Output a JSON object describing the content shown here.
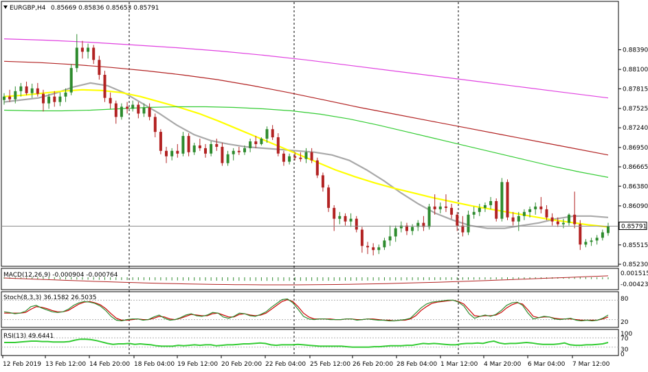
{
  "window": {
    "symbol_title": "EURGBP,H4",
    "ohlc_text": "0.85669 0.85836 0.85653 0.85791"
  },
  "colors": {
    "bull_candle": "#2e8b2e",
    "bear_candle": "#b22222",
    "ma_gray": "#a9a9a9",
    "ma_yellow": "#ffff00",
    "ma_green": "#33cc33",
    "ma_red": "#b22222",
    "ma_magenta": "#e040e0",
    "macd_signal": "#b22222",
    "macd_hist": "#2e8b2e",
    "stoch_main": "#2e8b2e",
    "stoch_signal": "#cc0000",
    "rsi": "#33cc33"
  },
  "chart_data": [
    {
      "type": "candlestick",
      "name": "price",
      "title": "EURGBP,H4",
      "ylim": [
        0.8523,
        0.889
      ],
      "y_ticks": [
        "0.88390",
        "0.88100",
        "0.87815",
        "0.87525",
        "0.87240",
        "0.86950",
        "0.86665",
        "0.86380",
        "0.86090",
        "0.85791",
        "0.85515",
        "0.85230"
      ],
      "current_price": "0.85791",
      "candles": [
        [
          0.8765,
          0.8775,
          0.8758,
          0.877
        ],
        [
          0.877,
          0.878,
          0.8762,
          0.8766
        ],
        [
          0.8766,
          0.8785,
          0.876,
          0.8778
        ],
        [
          0.8778,
          0.879,
          0.877,
          0.8785
        ],
        [
          0.8785,
          0.8792,
          0.8772,
          0.8775
        ],
        [
          0.8775,
          0.8789,
          0.8768,
          0.8782
        ],
        [
          0.8782,
          0.879,
          0.877,
          0.8774
        ],
        [
          0.8774,
          0.878,
          0.8748,
          0.876
        ],
        [
          0.876,
          0.8774,
          0.8752,
          0.877
        ],
        [
          0.877,
          0.8778,
          0.8755,
          0.8762
        ],
        [
          0.8762,
          0.8776,
          0.8756,
          0.877
        ],
        [
          0.877,
          0.8782,
          0.8762,
          0.8776
        ],
        [
          0.8776,
          0.8818,
          0.8772,
          0.8812
        ],
        [
          0.8812,
          0.8862,
          0.8806,
          0.8842
        ],
        [
          0.8842,
          0.8852,
          0.8826,
          0.8836
        ],
        [
          0.8836,
          0.8848,
          0.8826,
          0.8842
        ],
        [
          0.8842,
          0.8846,
          0.8818,
          0.8824
        ],
        [
          0.8824,
          0.883,
          0.8795,
          0.8802
        ],
        [
          0.8802,
          0.8808,
          0.8762,
          0.8768
        ],
        [
          0.8768,
          0.8776,
          0.8752,
          0.876
        ],
        [
          0.876,
          0.8764,
          0.873,
          0.874
        ],
        [
          0.874,
          0.876,
          0.8736,
          0.8755
        ],
        [
          0.8755,
          0.8762,
          0.8745,
          0.8752
        ],
        [
          0.8752,
          0.8764,
          0.8748,
          0.8758
        ],
        [
          0.8758,
          0.8762,
          0.8738,
          0.8745
        ],
        [
          0.8745,
          0.876,
          0.874,
          0.8754
        ],
        [
          0.8754,
          0.876,
          0.8735,
          0.874
        ],
        [
          0.874,
          0.8745,
          0.871,
          0.8718
        ],
        [
          0.8718,
          0.8722,
          0.8685,
          0.869
        ],
        [
          0.869,
          0.8696,
          0.8672,
          0.8682
        ],
        [
          0.8682,
          0.8694,
          0.8676,
          0.869
        ],
        [
          0.869,
          0.87,
          0.868,
          0.8686
        ],
        [
          0.8686,
          0.8718,
          0.8682,
          0.8712
        ],
        [
          0.8712,
          0.8716,
          0.8682,
          0.8688
        ],
        [
          0.8688,
          0.8702,
          0.8684,
          0.8698
        ],
        [
          0.8698,
          0.8708,
          0.869,
          0.8694
        ],
        [
          0.8694,
          0.87,
          0.868,
          0.8686
        ],
        [
          0.8686,
          0.8704,
          0.8682,
          0.87
        ],
        [
          0.87,
          0.8708,
          0.869,
          0.8696
        ],
        [
          0.8696,
          0.8702,
          0.8668,
          0.8672
        ],
        [
          0.8672,
          0.869,
          0.8668,
          0.8685
        ],
        [
          0.8685,
          0.8694,
          0.8676,
          0.869
        ],
        [
          0.869,
          0.8696,
          0.8684,
          0.8688
        ],
        [
          0.8688,
          0.8698,
          0.8684,
          0.8694
        ],
        [
          0.8694,
          0.8708,
          0.8688,
          0.8704
        ],
        [
          0.8704,
          0.8712,
          0.8694,
          0.87
        ],
        [
          0.87,
          0.871,
          0.8698,
          0.8708
        ],
        [
          0.8708,
          0.8726,
          0.8702,
          0.8722
        ],
        [
          0.8722,
          0.8728,
          0.8706,
          0.871
        ],
        [
          0.871,
          0.8716,
          0.8682,
          0.8686
        ],
        [
          0.8686,
          0.869,
          0.8668,
          0.8674
        ],
        [
          0.8674,
          0.8686,
          0.867,
          0.8682
        ],
        [
          0.8682,
          0.8688,
          0.8676,
          0.868
        ],
        [
          0.868,
          0.8688,
          0.8674,
          0.8678
        ],
        [
          0.8678,
          0.8694,
          0.8672,
          0.8688
        ],
        [
          0.8688,
          0.8694,
          0.8672,
          0.8676
        ],
        [
          0.8676,
          0.868,
          0.865,
          0.8654
        ],
        [
          0.8654,
          0.8658,
          0.863,
          0.8636
        ],
        [
          0.8636,
          0.864,
          0.86,
          0.8606
        ],
        [
          0.8606,
          0.861,
          0.8572,
          0.859
        ],
        [
          0.859,
          0.86,
          0.8582,
          0.8594
        ],
        [
          0.8594,
          0.8598,
          0.858,
          0.8586
        ],
        [
          0.8586,
          0.8598,
          0.8578,
          0.859
        ],
        [
          0.859,
          0.8594,
          0.857,
          0.8574
        ],
        [
          0.8574,
          0.8578,
          0.854,
          0.855
        ],
        [
          0.855,
          0.8556,
          0.8538,
          0.8548
        ],
        [
          0.8548,
          0.8554,
          0.8536,
          0.8544
        ],
        [
          0.8544,
          0.8552,
          0.8538,
          0.8548
        ],
        [
          0.8548,
          0.8562,
          0.8544,
          0.8558
        ],
        [
          0.8558,
          0.858,
          0.855,
          0.8564
        ],
        [
          0.8564,
          0.858,
          0.8556,
          0.8576
        ],
        [
          0.8576,
          0.8586,
          0.857,
          0.858
        ],
        [
          0.858,
          0.8584,
          0.8566,
          0.8572
        ],
        [
          0.8572,
          0.8582,
          0.8566,
          0.8578
        ],
        [
          0.8578,
          0.8588,
          0.8572,
          0.8584
        ],
        [
          0.8584,
          0.8594,
          0.8572,
          0.8578
        ],
        [
          0.8578,
          0.8612,
          0.8574,
          0.8608
        ],
        [
          0.8608,
          0.8626,
          0.8596,
          0.8604
        ],
        [
          0.8604,
          0.8614,
          0.8598,
          0.8608
        ],
        [
          0.8608,
          0.8626,
          0.86,
          0.8606
        ],
        [
          0.8606,
          0.8612,
          0.859,
          0.8596
        ],
        [
          0.8596,
          0.86,
          0.8572,
          0.858
        ],
        [
          0.858,
          0.8594,
          0.8564,
          0.857
        ],
        [
          0.857,
          0.8602,
          0.8566,
          0.8596
        ],
        [
          0.8596,
          0.8608,
          0.859,
          0.86
        ],
        [
          0.86,
          0.8612,
          0.8594,
          0.8606
        ],
        [
          0.8606,
          0.8614,
          0.86,
          0.861
        ],
        [
          0.861,
          0.8622,
          0.8604,
          0.8616
        ],
        [
          0.8616,
          0.862,
          0.8586,
          0.859
        ],
        [
          0.859,
          0.865,
          0.8586,
          0.8644
        ],
        [
          0.8644,
          0.8648,
          0.8588,
          0.8592
        ],
        [
          0.8592,
          0.86,
          0.858,
          0.8586
        ],
        [
          0.8586,
          0.86,
          0.8572,
          0.8594
        ],
        [
          0.8594,
          0.8604,
          0.8588,
          0.86
        ],
        [
          0.86,
          0.8608,
          0.8592,
          0.8604
        ],
        [
          0.8604,
          0.8614,
          0.8596,
          0.8608
        ],
        [
          0.8608,
          0.8622,
          0.8598,
          0.8604
        ],
        [
          0.8604,
          0.861,
          0.8588,
          0.8592
        ],
        [
          0.8592,
          0.8598,
          0.858,
          0.8586
        ],
        [
          0.8586,
          0.8592,
          0.8578,
          0.8582
        ],
        [
          0.8582,
          0.859,
          0.8576,
          0.8584
        ],
        [
          0.8584,
          0.8598,
          0.858,
          0.8596
        ],
        [
          0.8596,
          0.863,
          0.8576,
          0.8582
        ],
        [
          0.8582,
          0.8588,
          0.8544,
          0.8552
        ],
        [
          0.8552,
          0.856,
          0.8548,
          0.8556
        ],
        [
          0.8556,
          0.8562,
          0.855,
          0.8558
        ],
        [
          0.8558,
          0.8566,
          0.8552,
          0.8562
        ],
        [
          0.8562,
          0.8574,
          0.8558,
          0.857
        ],
        [
          0.8569,
          0.8584,
          0.8565,
          0.8579
        ]
      ],
      "moving_averages": [
        {
          "color_key": "ma_gray",
          "values": [
            0.8762,
            0.8765,
            0.8768,
            0.8775,
            0.8784,
            0.879,
            0.8786,
            0.8775,
            0.876,
            0.8745,
            0.8728,
            0.8714,
            0.8705,
            0.87,
            0.8696,
            0.8694,
            0.8692,
            0.869,
            0.8688,
            0.8684,
            0.8676,
            0.8662,
            0.8646,
            0.8628,
            0.8612,
            0.8598,
            0.8588,
            0.858,
            0.8576,
            0.8576,
            0.858,
            0.8584,
            0.859,
            0.8594,
            0.8594,
            0.8592
          ]
        },
        {
          "color_key": "ma_yellow",
          "values": [
            0.877,
            0.8772,
            0.8775,
            0.8778,
            0.878,
            0.8779,
            0.8776,
            0.877,
            0.8762,
            0.8754,
            0.8745,
            0.8734,
            0.8722,
            0.871,
            0.8698,
            0.8686,
            0.8674,
            0.8662,
            0.8652,
            0.8643,
            0.8635,
            0.8628,
            0.8621,
            0.8615,
            0.8609,
            0.8604,
            0.8599,
            0.8594,
            0.8589,
            0.8585,
            0.8581,
            0.8578
          ]
        },
        {
          "color_key": "ma_green",
          "values": [
            0.875,
            0.8749,
            0.8749,
            0.875,
            0.8752,
            0.8754,
            0.8755,
            0.8755,
            0.8754,
            0.8752,
            0.8749,
            0.8744,
            0.8737,
            0.8728,
            0.8718,
            0.8708,
            0.8698,
            0.8688,
            0.8678,
            0.8668,
            0.8659,
            0.8651
          ]
        },
        {
          "color_key": "ma_red",
          "values": [
            0.8822,
            0.882,
            0.8817,
            0.8813,
            0.8808,
            0.8802,
            0.8795,
            0.8786,
            0.8776,
            0.8765,
            0.8754,
            0.8744,
            0.8734,
            0.8724,
            0.8714,
            0.8704,
            0.8694,
            0.8684
          ]
        },
        {
          "color_key": "ma_magenta",
          "values": [
            0.8855,
            0.8853,
            0.885,
            0.8846,
            0.8842,
            0.8837,
            0.8831,
            0.8824,
            0.8816,
            0.8808,
            0.88,
            0.8792,
            0.8784,
            0.8776,
            0.8768
          ]
        }
      ]
    },
    {
      "type": "bar+line",
      "name": "macd",
      "label": "MACD(12,26,9) -0.000904 -0.000764",
      "y_ticks": [
        "0.001515",
        "-0.004239"
      ]
    },
    {
      "type": "line",
      "name": "stochastic",
      "label": "Stoch(8,3,3) 36.1582 26.5035",
      "ylim": [
        0,
        100
      ],
      "y_ticks": [
        "80",
        "20"
      ],
      "main": [
        44,
        42,
        38,
        40,
        46,
        60,
        64,
        56,
        50,
        44,
        42,
        44,
        52,
        64,
        72,
        76,
        74,
        70,
        62,
        48,
        30,
        18,
        16,
        20,
        22,
        22,
        18,
        20,
        28,
        34,
        24,
        18,
        20,
        26,
        34,
        38,
        32,
        30,
        34,
        42,
        40,
        28,
        24,
        30,
        40,
        38,
        32,
        30,
        36,
        44,
        58,
        70,
        82,
        84,
        72,
        52,
        30,
        22,
        20,
        22,
        22,
        20,
        20,
        20,
        22,
        22,
        18,
        20,
        22,
        20,
        18,
        18,
        16,
        16,
        18,
        20,
        24,
        40,
        56,
        68,
        74,
        76,
        78,
        80,
        80,
        74,
        62,
        38,
        24,
        30,
        34,
        30,
        36,
        48,
        64,
        72,
        74,
        64,
        40,
        22,
        26,
        30,
        28,
        22,
        20,
        22,
        24,
        18,
        16,
        18,
        16,
        18,
        24,
        34
      ],
      "signal": [
        40,
        40,
        40,
        40,
        42,
        52,
        60,
        58,
        54,
        48,
        44,
        44,
        48,
        58,
        68,
        74,
        76,
        72,
        66,
        54,
        38,
        24,
        18,
        18,
        20,
        22,
        20,
        20,
        24,
        30,
        28,
        22,
        20,
        24,
        30,
        36,
        34,
        32,
        32,
        38,
        40,
        34,
        28,
        28,
        36,
        38,
        34,
        32,
        34,
        40,
        52,
        64,
        76,
        82,
        76,
        60,
        40,
        28,
        22,
        22,
        22,
        22,
        20,
        20,
        22,
        22,
        20,
        20,
        22,
        22,
        20,
        18,
        18,
        16,
        18,
        18,
        22,
        32,
        48,
        60,
        70,
        74,
        76,
        78,
        80,
        76,
        68,
        50,
        32,
        30,
        32,
        32,
        34,
        42,
        56,
        66,
        72,
        68,
        50,
        30,
        26,
        28,
        28,
        24,
        22,
        22,
        22,
        20,
        18,
        18,
        18,
        18,
        22,
        28
      ]
    },
    {
      "type": "line",
      "name": "rsi",
      "label": "RSI(13) 49.6441",
      "ylim": [
        0,
        100
      ],
      "y_ticks": [
        "100",
        "70",
        "30",
        "0"
      ],
      "values": [
        50,
        50,
        50,
        52,
        54,
        56,
        56,
        54,
        54,
        52,
        52,
        52,
        54,
        60,
        64,
        64,
        62,
        58,
        52,
        46,
        42,
        44,
        44,
        46,
        42,
        44,
        42,
        40,
        36,
        34,
        34,
        34,
        38,
        36,
        38,
        40,
        38,
        40,
        40,
        36,
        38,
        40,
        40,
        42,
        44,
        44,
        46,
        48,
        46,
        40,
        38,
        40,
        40,
        40,
        42,
        40,
        38,
        36,
        34,
        34,
        34,
        34,
        34,
        32,
        30,
        30,
        30,
        30,
        32,
        32,
        34,
        36,
        36,
        36,
        38,
        38,
        42,
        46,
        44,
        46,
        44,
        42,
        40,
        40,
        44,
        46,
        46,
        48,
        46,
        52,
        56,
        48,
        44,
        46,
        46,
        48,
        50,
        48,
        44,
        42,
        42,
        42,
        44,
        48,
        40,
        38,
        38,
        40,
        40,
        42,
        44,
        50
      ]
    }
  ],
  "x_axis": {
    "labels": [
      "12 Feb 2019",
      "13 Feb 12:00",
      "14 Feb 20:00",
      "18 Feb 04:00",
      "19 Feb 12:00",
      "20 Feb 20:00",
      "22 Feb 04:00",
      "25 Feb 12:00",
      "26 Feb 20:00",
      "28 Feb 04:00",
      "1 Mar 12:00",
      "4 Mar 20:00",
      "6 Mar 04:00",
      "7 Mar 12:00"
    ]
  }
}
